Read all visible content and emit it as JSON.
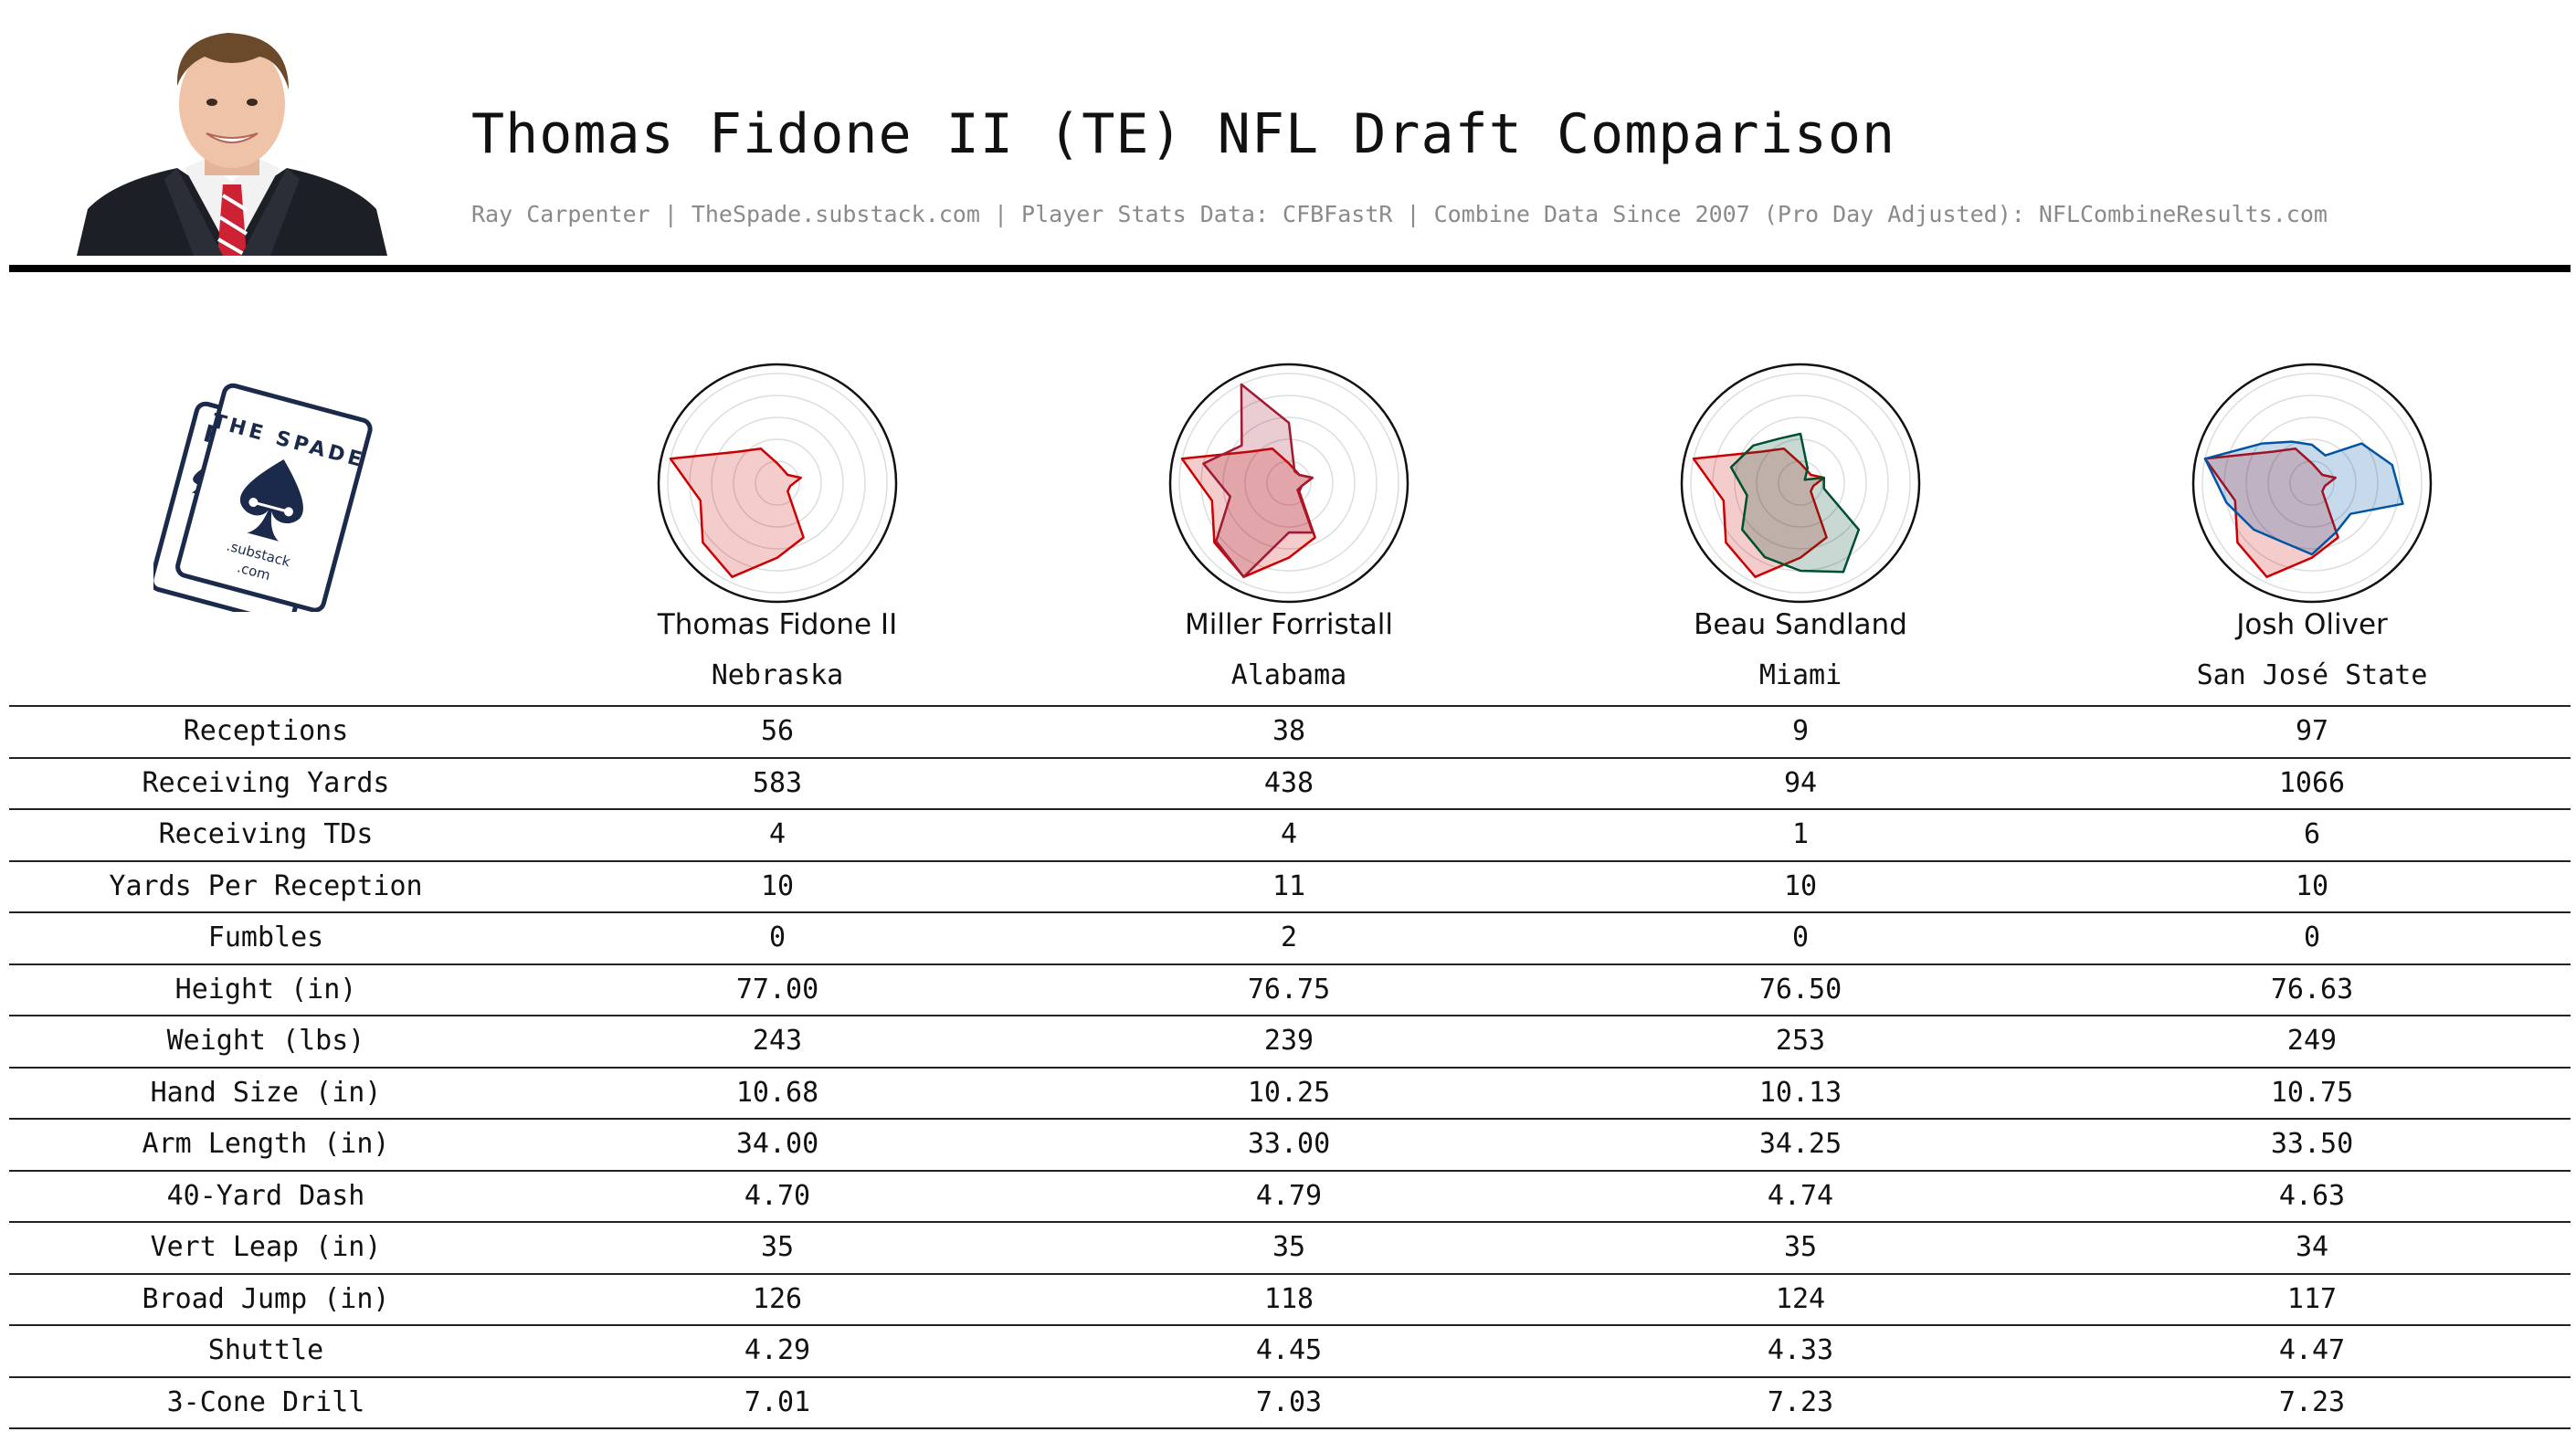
{
  "header": {
    "title": "Thomas Fidone II (TE) NFL Draft Comparison",
    "subtitle": "Ray Carpenter | TheSpade.substack.com | Player Stats Data: CFBFastR | Combine Data Since 2007 (Pro Day Adjusted): NFLCombineResults.com"
  },
  "logo": {
    "back_card_text": "RC",
    "front_card_text": "THE SPADE",
    "domain_line1": ".substack",
    "domain_line2": ".com"
  },
  "colors": {
    "target_player": "#cc0000",
    "comp_alabama": "#9e1b32",
    "comp_miami": "#005030",
    "comp_san_jose_state": "#0055a2",
    "ink": "#111111",
    "muted": "#8a8a8a"
  },
  "players": [
    {
      "name": "Thomas Fidone II",
      "school": "Nebraska"
    },
    {
      "name": "Miller Forristall",
      "school": "Alabama"
    },
    {
      "name": "Beau Sandland",
      "school": "Miami"
    },
    {
      "name": "Josh Oliver",
      "school": "San José State"
    }
  ],
  "chart_data": [
    {
      "type": "table",
      "columns": [
        "",
        "Thomas Fidone II",
        "Miller Forristall",
        "Beau Sandland",
        "Josh Oliver"
      ],
      "rows": [
        {
          "label": "Receptions",
          "values": [
            "56",
            "38",
            "9",
            "97"
          ]
        },
        {
          "label": "Receiving Yards",
          "values": [
            "583",
            "438",
            "94",
            "1066"
          ]
        },
        {
          "label": "Receiving TDs",
          "values": [
            "4",
            "4",
            "1",
            "6"
          ]
        },
        {
          "label": "Yards Per Reception",
          "values": [
            "10",
            "11",
            "10",
            "10"
          ]
        },
        {
          "label": "Fumbles",
          "values": [
            "0",
            "2",
            "0",
            "0"
          ]
        },
        {
          "label": "Height (in)",
          "values": [
            "77.00",
            "76.75",
            "76.50",
            "76.63"
          ]
        },
        {
          "label": "Weight (lbs)",
          "values": [
            "243",
            "239",
            "253",
            "249"
          ]
        },
        {
          "label": "Hand Size (in)",
          "values": [
            "10.68",
            "10.25",
            "10.13",
            "10.75"
          ]
        },
        {
          "label": "Arm Length (in)",
          "values": [
            "34.00",
            "33.00",
            "34.25",
            "33.50"
          ]
        },
        {
          "label": "40-Yard Dash",
          "values": [
            "4.70",
            "4.79",
            "4.74",
            "4.63"
          ]
        },
        {
          "label": "Vert Leap (in)",
          "values": [
            "35",
            "35",
            "35",
            "34"
          ]
        },
        {
          "label": "Broad Jump (in)",
          "values": [
            "126",
            "118",
            "124",
            "117"
          ]
        },
        {
          "label": "Shuttle",
          "values": [
            "4.29",
            "4.45",
            "4.33",
            "4.47"
          ]
        },
        {
          "label": "3-Cone Drill",
          "values": [
            "7.01",
            "7.03",
            "7.23",
            "7.23"
          ]
        }
      ]
    },
    {
      "type": "radar",
      "scale": [
        0,
        1
      ],
      "rings": 5,
      "axes": 14,
      "grid": true,
      "target": {
        "school": "Nebraska",
        "color": "#cc0000",
        "values": [
          0.18,
          0.13,
          0.12,
          0.22,
          0.12,
          0.12,
          0.55,
          0.68,
          0.95,
          0.87,
          0.72,
          1.0,
          0.46,
          0.35
        ]
      },
      "comparisons": [
        {
          "school": "Alabama",
          "color": "#9e1b32",
          "values": [
            0.55,
            0.12,
            0.12,
            0.22,
            0.12,
            0.1,
            0.5,
            0.45,
            0.95,
            0.85,
            0.55,
            0.8,
            0.55,
            1.0
          ]
        },
        {
          "school": "Miami",
          "color": "#005030",
          "values": [
            0.45,
            0.15,
            0.05,
            0.22,
            0.22,
            0.68,
            0.9,
            0.8,
            0.75,
            0.68,
            0.5,
            0.65,
            0.55,
            0.45
          ]
        },
        {
          "school": "San José State",
          "color": "#0055a2",
          "values": [
            0.35,
            0.28,
            0.58,
            0.75,
            0.85,
            0.45,
            0.5,
            0.65,
            0.6,
            0.68,
            0.8,
            1.0,
            0.58,
            0.42
          ]
        }
      ]
    }
  ]
}
